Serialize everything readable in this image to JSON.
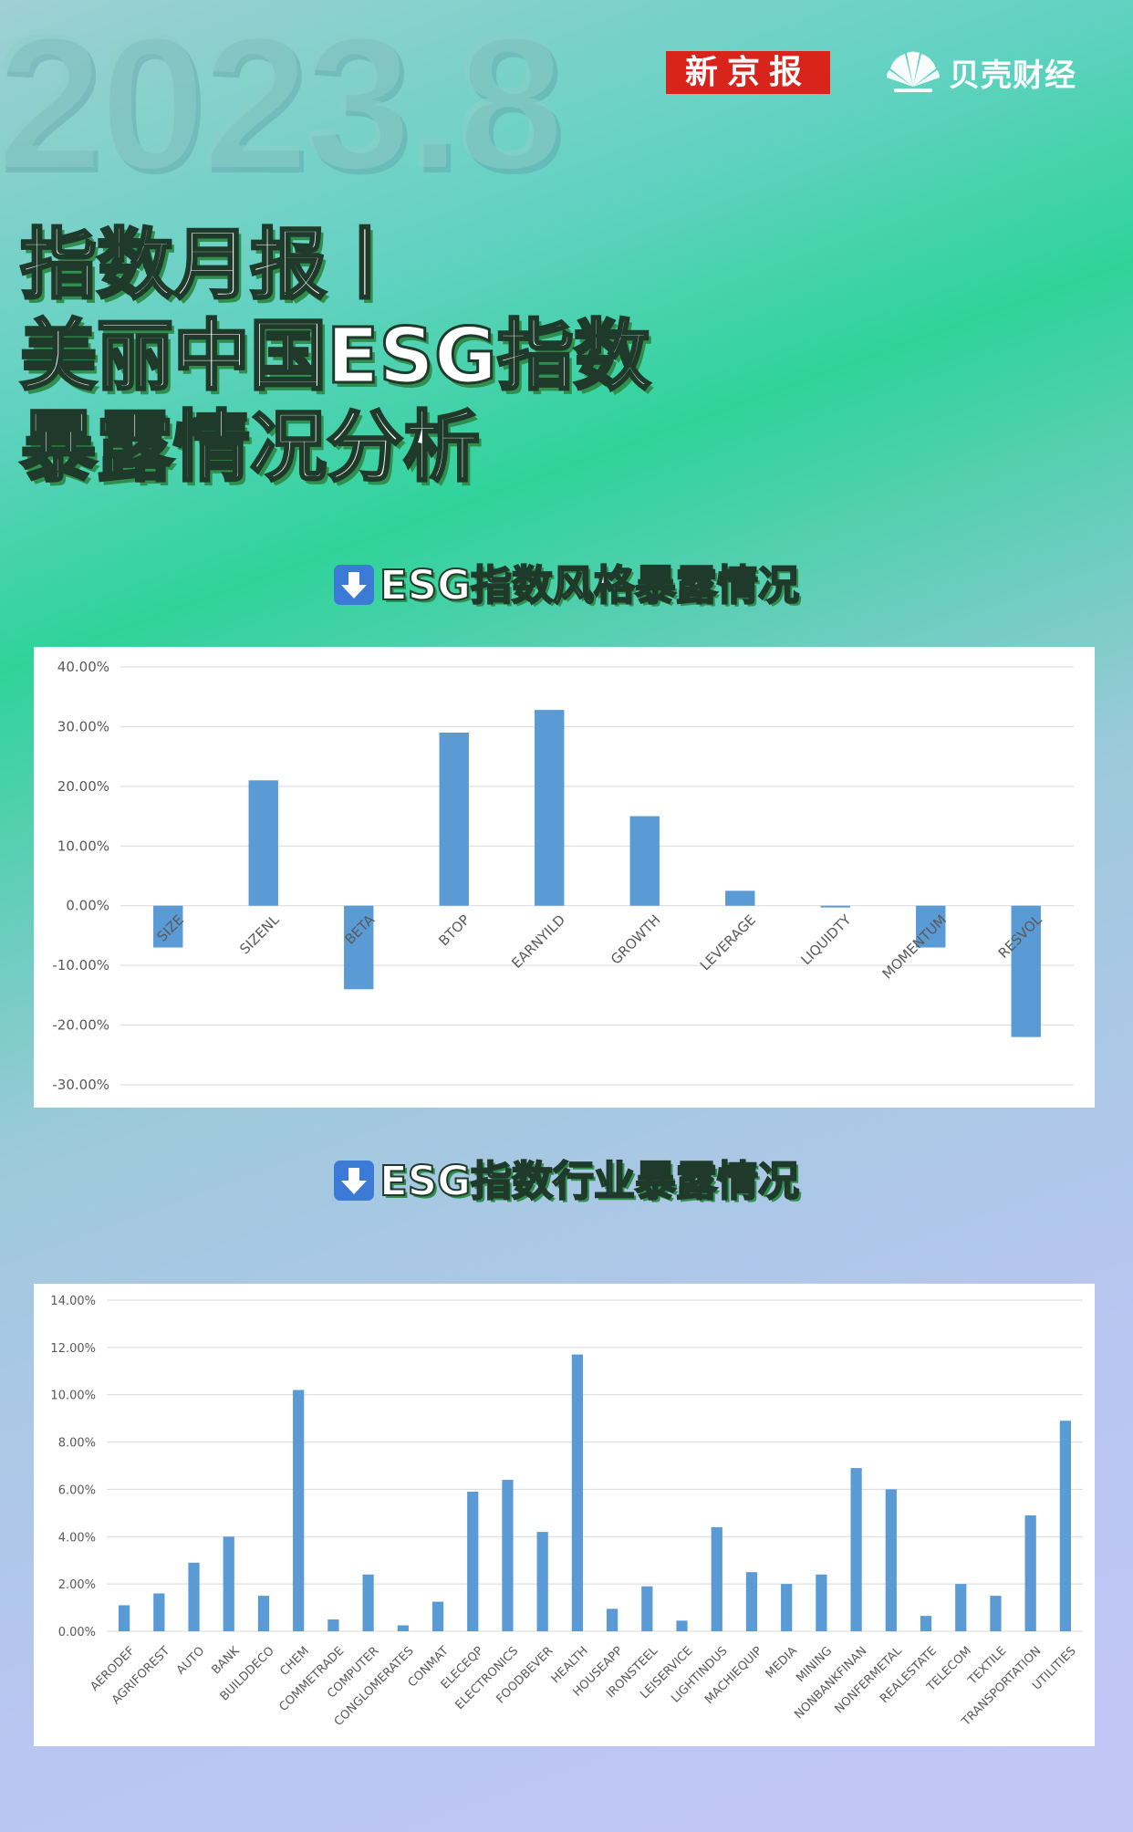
{
  "header": {
    "year_watermark": "2023.8",
    "logo_xinjingbao": "新京报",
    "logo_beike": "贝壳财经"
  },
  "title": {
    "line1": "指数月报丨",
    "line2": "美丽中国ESG指数",
    "line3": "暴露情况分析"
  },
  "sections": {
    "style": {
      "title": "ESG指数风格暴露情况",
      "icon": "down-arrow-icon"
    },
    "industry": {
      "title": "ESG指数行业暴露情况",
      "icon": "down-arrow-icon"
    }
  },
  "colors": {
    "bar": "#5b9bd5",
    "grid": "#d9d9d9",
    "panel": "#ffffff"
  },
  "chart_data": [
    {
      "type": "bar",
      "title": "",
      "xlabel": "",
      "ylabel": "",
      "categories": [
        "SIZE",
        "SIZENL",
        "BETA",
        "BTOP",
        "EARNYILD",
        "GROWTH",
        "LEVERAGE",
        "LIQUIDTY",
        "MOMENTUM",
        "RESVOL"
      ],
      "values": [
        -0.07,
        0.21,
        -0.14,
        0.29,
        0.328,
        0.15,
        0.025,
        -0.003,
        -0.07,
        -0.22
      ],
      "ylim": [
        -0.3,
        0.4
      ],
      "yticks": [
        0.4,
        0.3,
        0.2,
        0.1,
        0.0,
        -0.1,
        -0.2,
        -0.3
      ],
      "ytick_labels": [
        "40.00%",
        "30.00%",
        "20.00%",
        "10.00%",
        "0.00%",
        "-10.00%",
        "-20.00%",
        "-30.00%"
      ],
      "grid": true
    },
    {
      "type": "bar",
      "title": "",
      "xlabel": "",
      "ylabel": "",
      "categories": [
        "AERODEF",
        "AGRIFOREST",
        "AUTO",
        "BANK",
        "BUILDDECO",
        "CHEM",
        "COMMETRADE",
        "COMPUTER",
        "CONGLOMERATES",
        "CONMAT",
        "ELECEQP",
        "ELECTRONICS",
        "FOODBEVER",
        "HEALTH",
        "HOUSEAPP",
        "IRONSTEEL",
        "LEISERVICE",
        "LIGHTINDUS",
        "MACHIEQUIP",
        "MEDIA",
        "MINING",
        "NONBANKFINAN",
        "NONFERMETAL",
        "REALESTATE",
        "TELECOM",
        "TEXTILE",
        "TRANSPORTATION",
        "UTILITIES"
      ],
      "values": [
        0.011,
        0.016,
        0.029,
        0.04,
        0.015,
        0.102,
        0.005,
        0.024,
        0.0025,
        0.0125,
        0.059,
        0.064,
        0.042,
        0.117,
        0.0095,
        0.019,
        0.0045,
        0.044,
        0.025,
        0.02,
        0.024,
        0.069,
        0.06,
        0.0065,
        0.02,
        0.015,
        0.049,
        0.089
      ],
      "ylim": [
        0.0,
        0.14
      ],
      "yticks": [
        0.14,
        0.12,
        0.1,
        0.08,
        0.06,
        0.04,
        0.02,
        0.0
      ],
      "ytick_labels": [
        "14.00%",
        "12.00%",
        "10.00%",
        "8.00%",
        "6.00%",
        "4.00%",
        "2.00%",
        "0.00%"
      ],
      "grid": true
    }
  ]
}
